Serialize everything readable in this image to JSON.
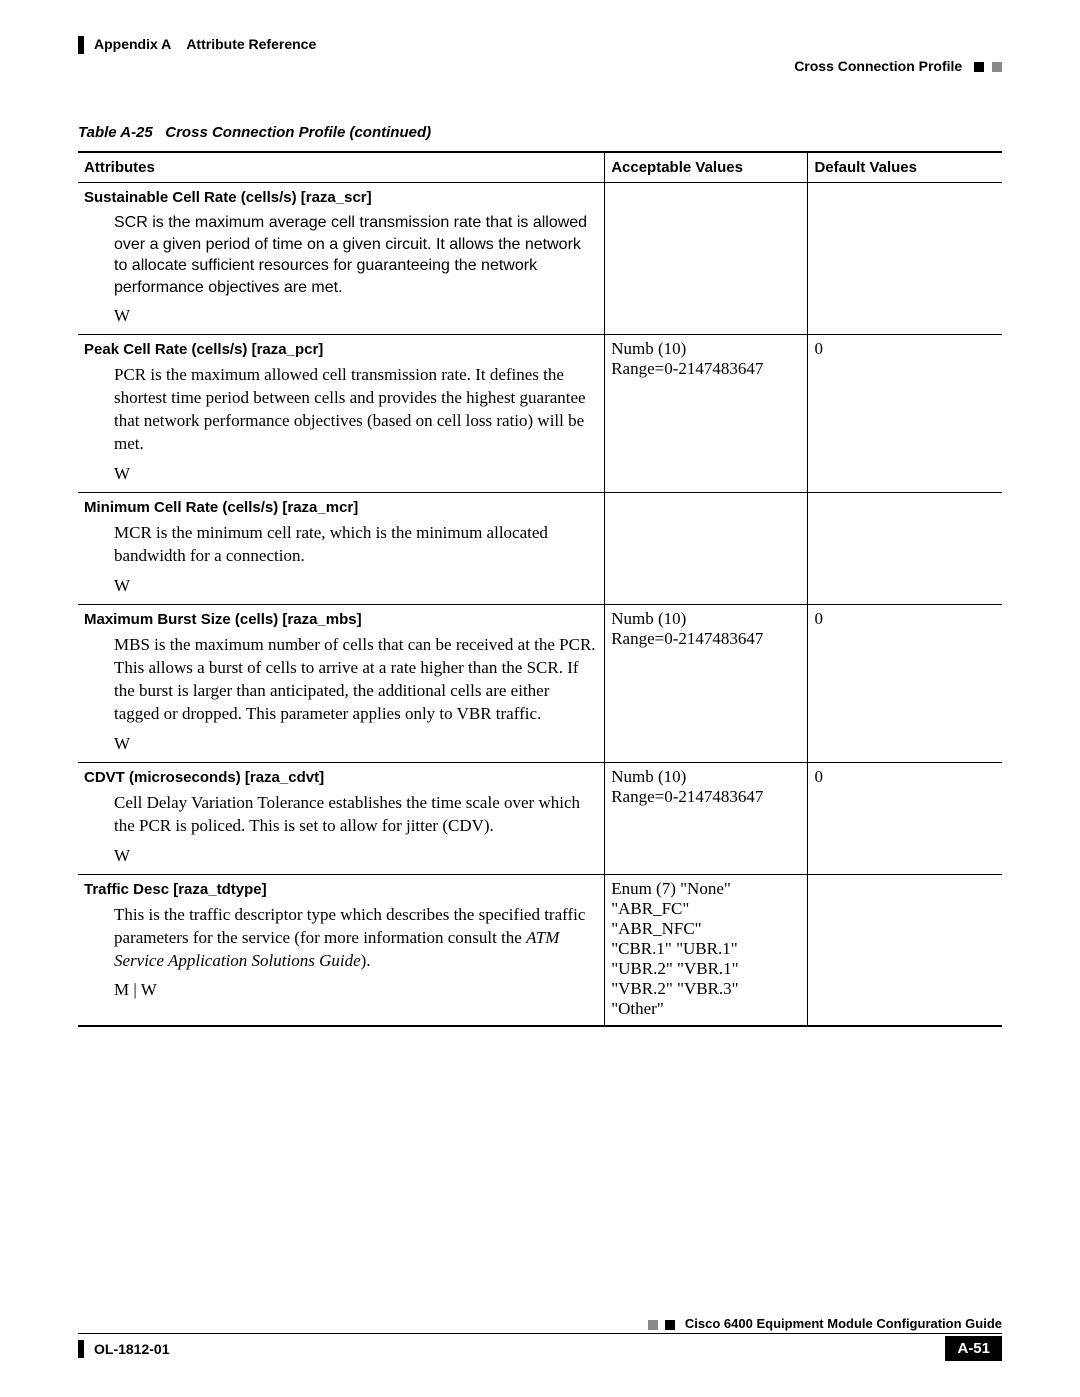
{
  "header": {
    "appendix": "Appendix A",
    "title": "Attribute Reference",
    "section": "Cross Connection Profile"
  },
  "table": {
    "caption_prefix": "Table A-25",
    "caption_rest": "Cross Connection Profile  (continued)",
    "columns": {
      "attr": "Attributes",
      "acc": "Acceptable Values",
      "def": "Default Values"
    },
    "rows": [
      {
        "title": "Sustainable Cell Rate (cells/s) [raza_scr]",
        "desc": "SCR is the maximum average cell transmission rate that is allowed over a given period of time on a given circuit. It allows the network to allocate sufficient resources for guaranteeing the network performance objectives are met.",
        "desc_font": "sans",
        "flag": "W",
        "acc": "",
        "def": ""
      },
      {
        "title": "Peak Cell Rate (cells/s) [raza_pcr]",
        "desc": "PCR is the maximum allowed cell transmission rate. It defines the shortest time period between cells and provides the highest guarantee that network performance objectives (based on cell loss ratio) will be met.",
        "desc_font": "serif",
        "flag": "W",
        "acc": "Numb (10)\nRange=0-2147483647",
        "def": "0"
      },
      {
        "title": "Minimum Cell Rate (cells/s) [raza_mcr]",
        "desc": "MCR is the minimum cell rate, which is the minimum allocated bandwidth for a connection.",
        "desc_font": "serif",
        "flag": "W",
        "acc": "",
        "def": ""
      },
      {
        "title": "Maximum Burst Size (cells) [raza_mbs]",
        "desc": "MBS is the maximum number of cells that can be received at the PCR. This allows a burst of cells to arrive at a rate higher than the SCR. If the burst is larger than anticipated, the additional cells are either tagged or dropped. This parameter applies only to VBR traffic.",
        "desc_font": "serif",
        "flag": "W",
        "acc": "Numb (10)\nRange=0-2147483647",
        "def": "0"
      },
      {
        "title": "CDVT (microseconds) [raza_cdvt]",
        "desc": "Cell Delay Variation Tolerance establishes the time scale over which the PCR is policed. This is set to allow for jitter (CDV).",
        "desc_font": "serif",
        "flag": "W",
        "acc": "Numb (10)\nRange=0-2147483647",
        "def": "0"
      },
      {
        "title": "Traffic Desc [raza_tdtype]",
        "desc_html": "This is the traffic descriptor type which describes the specified traffic parameters for the service (for more information consult the <span class=\"ital\">ATM Service Application Solutions Guide</span>).",
        "desc_font": "serif",
        "flag": "M | W",
        "acc": "Enum (7) \"None\"\n\"ABR_FC\"\n\"ABR_NFC\"\n\"CBR.1\" \"UBR.1\"\n\"UBR.2\" \"VBR.1\"\n\"VBR.2\" \"VBR.3\"\n\"Other\"",
        "def": ""
      }
    ]
  },
  "footer": {
    "guide": "Cisco 6400 Equipment Module Configuration Guide",
    "doc": "OL-1812-01",
    "page": "A-51"
  }
}
